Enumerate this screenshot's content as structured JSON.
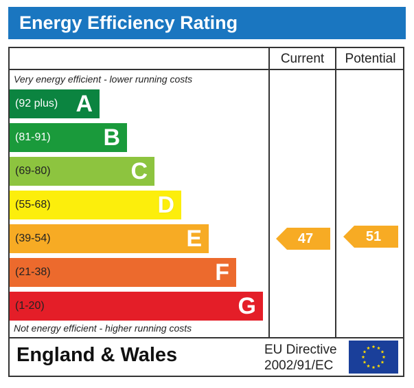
{
  "title": "Energy Efficiency Rating",
  "columns": {
    "current": "Current",
    "potential": "Potential"
  },
  "top_note": "Very energy efficient - lower running costs",
  "bottom_note": "Not energy efficient - higher running costs",
  "footer": {
    "region": "England & Wales",
    "directive_line1": "EU Directive",
    "directive_line2": "2002/91/EC"
  },
  "flag_icon": "eu-flag-icon",
  "chart_data": {
    "type": "bar",
    "categories": [
      "A",
      "B",
      "C",
      "D",
      "E",
      "F",
      "G"
    ],
    "bands": [
      {
        "letter": "A",
        "range": "(92 plus)",
        "min": 92,
        "max": 100,
        "color": "#0b8440",
        "text_color": "#ffffff"
      },
      {
        "letter": "B",
        "range": "(81-91)",
        "min": 81,
        "max": 91,
        "color": "#1a9a3b",
        "text_color": "#ffffff"
      },
      {
        "letter": "C",
        "range": "(69-80)",
        "min": 69,
        "max": 80,
        "color": "#8dc43f",
        "text_color": "#222222"
      },
      {
        "letter": "D",
        "range": "(55-68)",
        "min": 55,
        "max": 68,
        "color": "#fcee0c",
        "text_color": "#222222"
      },
      {
        "letter": "E",
        "range": "(39-54)",
        "min": 39,
        "max": 54,
        "color": "#f7ab24",
        "text_color": "#222222"
      },
      {
        "letter": "F",
        "range": "(21-38)",
        "min": 21,
        "max": 38,
        "color": "#ec6a2d",
        "text_color": "#222222"
      },
      {
        "letter": "G",
        "range": "(1-20)",
        "min": 1,
        "max": 20,
        "color": "#e41e28",
        "text_color": "#222222"
      }
    ],
    "current": {
      "value": 47,
      "band": "E",
      "color": "#f7ab24"
    },
    "potential": {
      "value": 51,
      "band": "E",
      "color": "#f7ab24"
    }
  }
}
